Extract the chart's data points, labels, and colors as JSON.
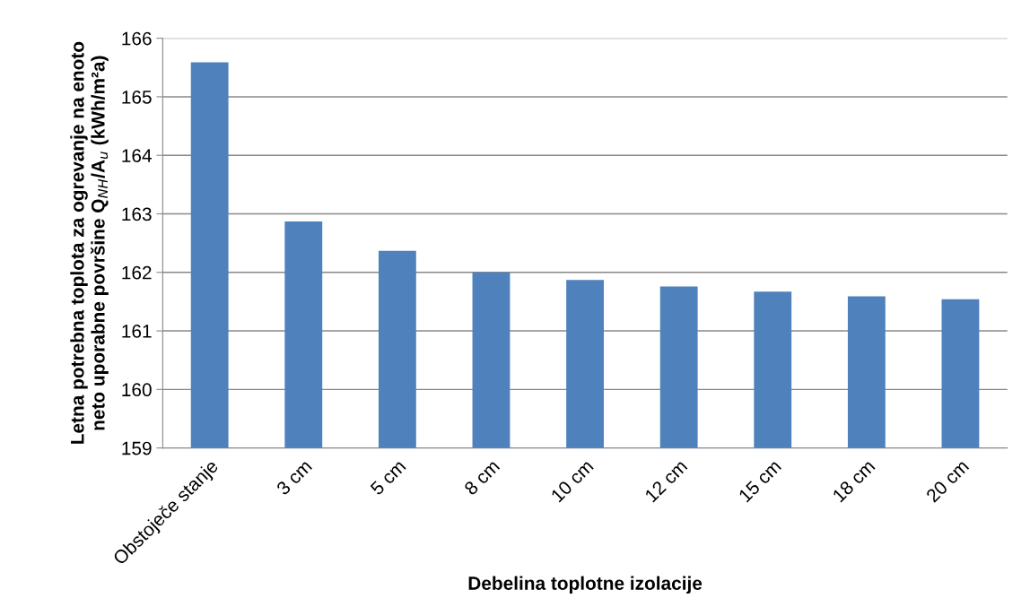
{
  "chart_data": {
    "type": "bar",
    "xlabel": "Debelina toplotne izolacije",
    "ylabel": "Letna potrebna toplota za ogrevanje na enoto\nneto uporabne površine Q$_{NH}$/A$_{u}$ (kWh/m²a)",
    "categories": [
      "Obstoječe stanje",
      "3 cm",
      "5 cm",
      "8 cm",
      "10 cm",
      "12 cm",
      "15 cm",
      "18 cm",
      "20 cm"
    ],
    "values": [
      165.59,
      162.87,
      162.37,
      162.0,
      161.87,
      161.76,
      161.67,
      161.59,
      161.54
    ],
    "color": "#4f81bd",
    "ylim": [
      159,
      166
    ],
    "yticks": [
      159,
      160,
      161,
      162,
      163,
      164,
      165,
      166
    ],
    "grid": "y",
    "legend": false
  }
}
